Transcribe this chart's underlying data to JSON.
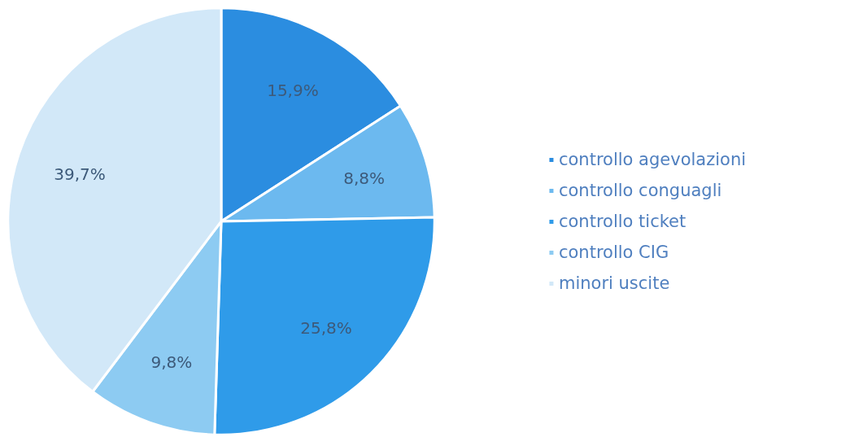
{
  "chart_data": {
    "type": "pie",
    "categories": [
      "controllo agevolazioni",
      "controllo conguagli",
      "controllo ticket",
      "controllo CIG",
      "minori uscite"
    ],
    "values": [
      15.9,
      8.8,
      25.8,
      9.8,
      39.7
    ],
    "colors": [
      "#2b8de0",
      "#6cb9ef",
      "#2f9be9",
      "#8dcbf2",
      "#d2e8f8"
    ],
    "value_labels": [
      "15,9%",
      "8,8%",
      "25,8%",
      "9,8%",
      "39,7%"
    ],
    "legend": "right"
  }
}
